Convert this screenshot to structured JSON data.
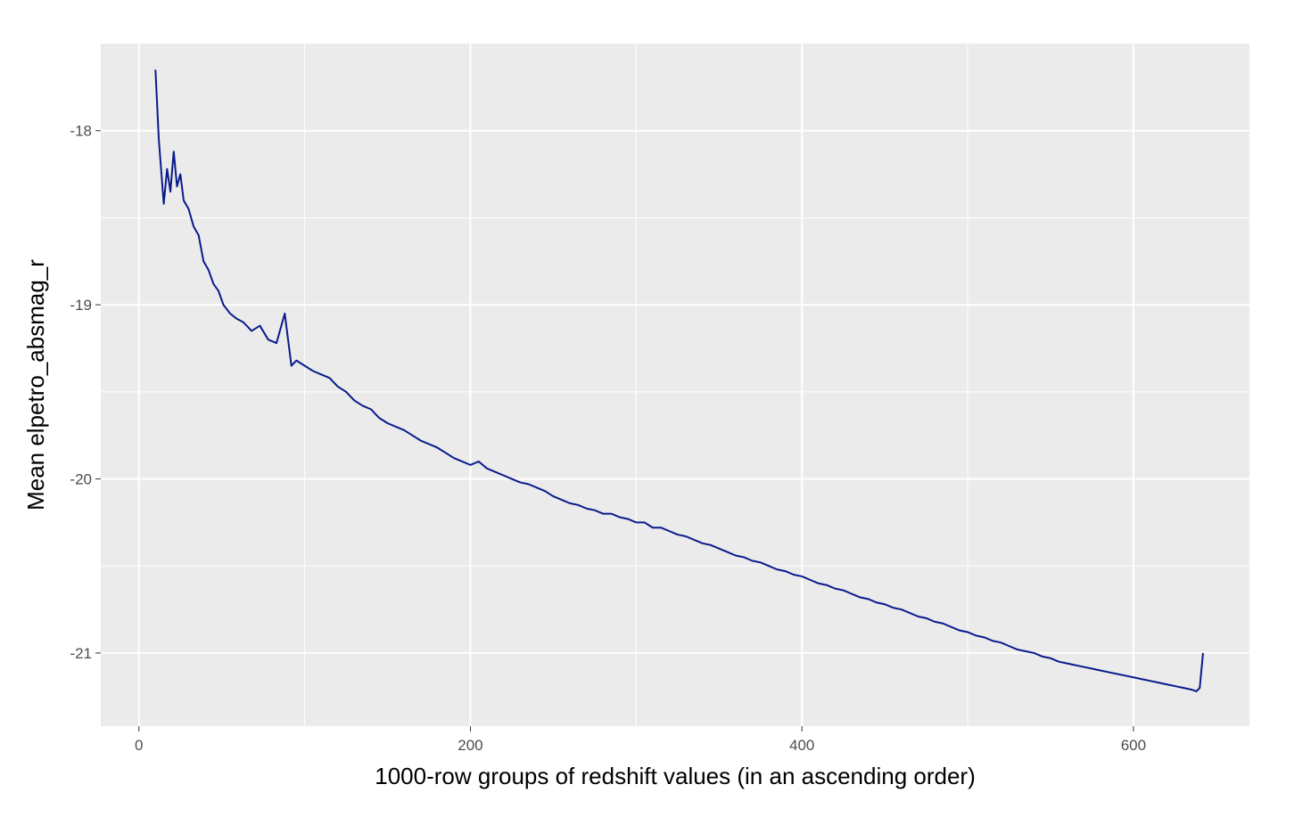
{
  "chart_data": {
    "type": "line",
    "title": "",
    "xlabel": "1000-row groups of redshift values (in an ascending order)",
    "ylabel": "Mean elpetro_absmag_r",
    "xlim": [
      -23,
      670
    ],
    "ylim": [
      -21.42,
      -17.5
    ],
    "x_ticks": [
      0,
      200,
      400,
      600
    ],
    "x_tick_labels": [
      "0",
      "200",
      "400",
      "600"
    ],
    "x_minor_breaks": [
      100,
      300,
      500
    ],
    "y_ticks": [
      -21,
      -20,
      -19,
      -18
    ],
    "y_tick_labels": [
      "-21",
      "-20",
      "-19",
      "-18"
    ],
    "y_minor_breaks": [
      -20.5,
      -19.5,
      -18.5
    ],
    "grid": true,
    "legend": "none",
    "colors": {
      "line": "#0a1a8c",
      "panel": "#ebebeb",
      "grid": "#ffffff",
      "tick": "#333333"
    },
    "series": [
      {
        "x": [
          10,
          12,
          15,
          17,
          19,
          21,
          23,
          25,
          27,
          30,
          33,
          36,
          39,
          42,
          45,
          48,
          51,
          55,
          59,
          63,
          68,
          73,
          78,
          83,
          88,
          92,
          95,
          100,
          105,
          110,
          115,
          120,
          125,
          130,
          135,
          140,
          145,
          150,
          155,
          160,
          165,
          170,
          175,
          180,
          185,
          190,
          195,
          200,
          205,
          210,
          215,
          220,
          225,
          230,
          235,
          240,
          245,
          250,
          255,
          260,
          265,
          270,
          275,
          280,
          285,
          290,
          295,
          300,
          305,
          310,
          315,
          320,
          325,
          330,
          335,
          340,
          345,
          350,
          355,
          360,
          365,
          370,
          375,
          380,
          385,
          390,
          395,
          400,
          405,
          410,
          415,
          420,
          425,
          430,
          435,
          440,
          445,
          450,
          455,
          460,
          465,
          470,
          475,
          480,
          485,
          490,
          495,
          500,
          505,
          510,
          515,
          520,
          525,
          530,
          535,
          540,
          545,
          550,
          555,
          560,
          565,
          570,
          575,
          580,
          585,
          590,
          595,
          600,
          605,
          610,
          615,
          620,
          625,
          630,
          635,
          638,
          640,
          642
        ],
        "y": [
          -17.65,
          -18.05,
          -18.42,
          -18.22,
          -18.35,
          -18.12,
          -18.32,
          -18.25,
          -18.4,
          -18.45,
          -18.55,
          -18.6,
          -18.75,
          -18.8,
          -18.88,
          -18.92,
          -19.0,
          -19.05,
          -19.08,
          -19.1,
          -19.15,
          -19.12,
          -19.2,
          -19.22,
          -19.05,
          -19.35,
          -19.32,
          -19.35,
          -19.38,
          -19.4,
          -19.42,
          -19.47,
          -19.5,
          -19.55,
          -19.58,
          -19.6,
          -19.65,
          -19.68,
          -19.7,
          -19.72,
          -19.75,
          -19.78,
          -19.8,
          -19.82,
          -19.85,
          -19.88,
          -19.9,
          -19.92,
          -19.9,
          -19.94,
          -19.96,
          -19.98,
          -20.0,
          -20.02,
          -20.03,
          -20.05,
          -20.07,
          -20.1,
          -20.12,
          -20.14,
          -20.15,
          -20.17,
          -20.18,
          -20.2,
          -20.2,
          -20.22,
          -20.23,
          -20.25,
          -20.25,
          -20.28,
          -20.28,
          -20.3,
          -20.32,
          -20.33,
          -20.35,
          -20.37,
          -20.38,
          -20.4,
          -20.42,
          -20.44,
          -20.45,
          -20.47,
          -20.48,
          -20.5,
          -20.52,
          -20.53,
          -20.55,
          -20.56,
          -20.58,
          -20.6,
          -20.61,
          -20.63,
          -20.64,
          -20.66,
          -20.68,
          -20.69,
          -20.71,
          -20.72,
          -20.74,
          -20.75,
          -20.77,
          -20.79,
          -20.8,
          -20.82,
          -20.83,
          -20.85,
          -20.87,
          -20.88,
          -20.9,
          -20.91,
          -20.93,
          -20.94,
          -20.96,
          -20.98,
          -20.99,
          -21.0,
          -21.02,
          -21.03,
          -21.05,
          -21.06,
          -21.07,
          -21.08,
          -21.09,
          -21.1,
          -21.11,
          -21.12,
          -21.13,
          -21.14,
          -21.15,
          -21.16,
          -21.17,
          -21.18,
          -21.19,
          -21.2,
          -21.21,
          -21.22,
          -21.2,
          -21.0
        ]
      }
    ]
  }
}
